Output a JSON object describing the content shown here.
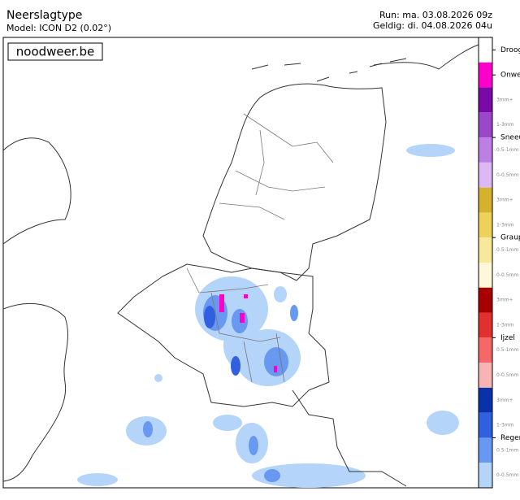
{
  "header": {
    "title": "Neerslagtype",
    "model": "Model: ICON D2 (0.02°)",
    "run": "Run: ma. 03.08.2026 09z",
    "valid": "Geldig: di. 04.08.2026 04u"
  },
  "brand": "noodweer.be",
  "legend": [
    {
      "label": "Droog",
      "levels": [
        {
          "color": "#ffffff"
        }
      ]
    },
    {
      "label": "Onwe",
      "levels": [
        {
          "color": "#ff00cc"
        }
      ]
    },
    {
      "label": "Sneeu",
      "levels": [
        {
          "label": "3mm+",
          "color": "#7a0aa6"
        },
        {
          "label": "1-3mm",
          "color": "#9a48c8"
        },
        {
          "label": "0.5-1mm",
          "color": "#bb80e2"
        },
        {
          "label": "0-0.5mm",
          "color": "#dcb8f4"
        }
      ]
    },
    {
      "label": "Graup",
      "levels": [
        {
          "label": "3mm+",
          "color": "#d4b22e"
        },
        {
          "label": "1-3mm",
          "color": "#ecd25a"
        },
        {
          "label": "0.5-1mm",
          "color": "#f8e89a"
        },
        {
          "label": "0-0.5mm",
          "color": "#fdf8d8"
        }
      ]
    },
    {
      "label": "Ijzel",
      "levels": [
        {
          "label": "3mm+",
          "color": "#a80000"
        },
        {
          "label": "1-3mm",
          "color": "#e03030"
        },
        {
          "label": "0.5-1mm",
          "color": "#f46868"
        },
        {
          "label": "0-0.5mm",
          "color": "#f8b4b4"
        }
      ]
    },
    {
      "label": "Regen",
      "levels": [
        {
          "label": "3mm+",
          "color": "#0a32a8"
        },
        {
          "label": "1-3mm",
          "color": "#3060e0"
        },
        {
          "label": "0.5-1mm",
          "color": "#6898f0"
        },
        {
          "label": "0-0.5mm",
          "color": "#b4d4fa"
        }
      ]
    }
  ]
}
